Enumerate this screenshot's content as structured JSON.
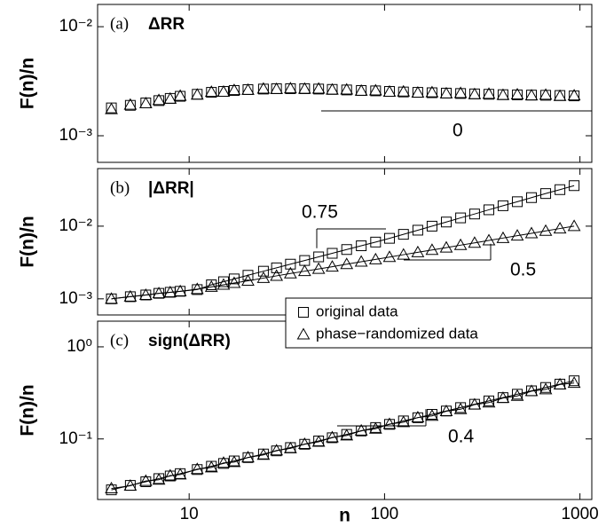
{
  "chart_data": [
    {
      "type": "scatter",
      "label": "(a)",
      "title": "ΔRR",
      "ylabel": "F(n)/n",
      "log": true,
      "lines": false,
      "x": [
        4,
        5,
        6,
        7,
        8,
        9,
        11,
        13,
        15,
        17,
        20,
        24,
        28,
        33,
        39,
        46,
        54,
        64,
        76,
        90,
        106,
        125,
        148,
        175,
        207,
        245,
        289,
        342,
        404,
        478,
        565,
        668,
        790,
        934
      ],
      "series": [
        {
          "marker": "square",
          "color": "#000000",
          "values": [
            0.0018,
            0.0019,
            0.002,
            0.0021,
            0.0022,
            0.0023,
            0.0024,
            0.0025,
            0.00255,
            0.0026,
            0.00265,
            0.00268,
            0.0027,
            0.0027,
            0.0027,
            0.00268,
            0.00266,
            0.00263,
            0.0026,
            0.00258,
            0.00255,
            0.00252,
            0.0025,
            0.00248,
            0.00246,
            0.00244,
            0.00242,
            0.0024,
            0.00238,
            0.00237,
            0.00236,
            0.00235,
            0.00234,
            0.00232
          ]
        },
        {
          "marker": "triangle",
          "color": "#000000",
          "values": [
            0.00175,
            0.00192,
            0.00198,
            0.00212,
            0.00218,
            0.00232,
            0.00238,
            0.00252,
            0.00253,
            0.00262,
            0.00263,
            0.0027,
            0.00268,
            0.00272,
            0.00269,
            0.0027,
            0.00264,
            0.00265,
            0.00258,
            0.0026,
            0.00253,
            0.00254,
            0.00248,
            0.0025,
            0.00244,
            0.00246,
            0.0024,
            0.00242,
            0.00236,
            0.00239,
            0.00234,
            0.00237,
            0.00231,
            0.00234
          ]
        }
      ],
      "xlim": [
        3.4,
        1150
      ],
      "xticks": [
        10,
        100,
        1000
      ],
      "ylim": [
        0.00057,
        0.016
      ],
      "yticks": [
        {
          "value": 0.001,
          "label": "10⁻³"
        },
        {
          "value": 0.01,
          "label": "10⁻²"
        }
      ],
      "annotations": [
        {
          "slope": 0
        }
      ]
    },
    {
      "type": "scatter",
      "label": "(b)",
      "title": "|ΔRR|",
      "ylabel": "F(n)/n",
      "log": true,
      "lines": true,
      "x": [
        4,
        5,
        6,
        7,
        8,
        9,
        11,
        13,
        15,
        17,
        20,
        24,
        28,
        33,
        39,
        46,
        54,
        64,
        76,
        90,
        106,
        125,
        148,
        175,
        207,
        245,
        289,
        342,
        404,
        478,
        565,
        668,
        790,
        934
      ],
      "series": [
        {
          "marker": "square",
          "color": "#000000",
          "values": [
            0.001,
            0.00107,
            0.00113,
            0.00119,
            0.00123,
            0.00127,
            0.00134,
            0.00156,
            0.00172,
            0.00188,
            0.00211,
            0.0024,
            0.00267,
            0.003,
            0.00337,
            0.00378,
            0.00423,
            0.00477,
            0.00537,
            0.00604,
            0.0068,
            0.00772,
            0.0088,
            0.01,
            0.0114,
            0.013,
            0.0147,
            0.0168,
            0.0191,
            0.0217,
            0.0247,
            0.0281,
            0.0318,
            0.0361
          ]
        },
        {
          "marker": "triangle",
          "color": "#000000",
          "values": [
            0.001,
            0.00107,
            0.00113,
            0.00119,
            0.00123,
            0.00127,
            0.00136,
            0.00146,
            0.00156,
            0.00165,
            0.00177,
            0.00193,
            0.00207,
            0.00223,
            0.0024,
            0.00258,
            0.00277,
            0.003,
            0.00324,
            0.00349,
            0.00375,
            0.00405,
            0.00437,
            0.0047,
            0.00507,
            0.00548,
            0.00589,
            0.00636,
            0.00686,
            0.0074,
            0.00797,
            0.0086,
            0.00928,
            0.01
          ]
        }
      ],
      "xlim": [
        3.4,
        1150
      ],
      "xticks": [
        10,
        100,
        1000
      ],
      "ylim": [
        0.0006,
        0.062
      ],
      "yticks": [
        {
          "value": 0.001,
          "label": "10⁻³"
        },
        {
          "value": 0.01,
          "label": "10⁻²"
        }
      ],
      "annotations": [
        {
          "slope": 0.75
        },
        {
          "slope": 0.5
        }
      ]
    },
    {
      "type": "scatter",
      "label": "(c)",
      "title": "sign(ΔRR)",
      "ylabel": "F(n)/n",
      "xlabel": "n",
      "log": true,
      "lines": true,
      "x": [
        4,
        5,
        6,
        7,
        8,
        9,
        11,
        13,
        15,
        17,
        20,
        24,
        28,
        33,
        39,
        46,
        54,
        64,
        76,
        90,
        106,
        125,
        148,
        175,
        207,
        245,
        289,
        342,
        404,
        478,
        565,
        668,
        790,
        934
      ],
      "series": [
        {
          "name": "original data",
          "marker": "square",
          "color": "#000000",
          "values": [
            0.028,
            0.0313,
            0.0343,
            0.0371,
            0.0396,
            0.042,
            0.0465,
            0.0505,
            0.0542,
            0.0577,
            0.0627,
            0.0686,
            0.0742,
            0.0806,
            0.0875,
            0.0951,
            0.103,
            0.112,
            0.122,
            0.133,
            0.144,
            0.157,
            0.17,
            0.185,
            0.201,
            0.219,
            0.238,
            0.259,
            0.281,
            0.306,
            0.333,
            0.362,
            0.394,
            0.428
          ]
        },
        {
          "name": "phase−randomized data",
          "marker": "triangle",
          "color": "#000000",
          "values": [
            0.029,
            0.031,
            0.035,
            0.036,
            0.04,
            0.041,
            0.047,
            0.049,
            0.055,
            0.056,
            0.063,
            0.067,
            0.075,
            0.079,
            0.088,
            0.093,
            0.104,
            0.109,
            0.123,
            0.129,
            0.145,
            0.152,
            0.171,
            0.178,
            0.2,
            0.21,
            0.236,
            0.248,
            0.278,
            0.293,
            0.33,
            0.345,
            0.39,
            0.405
          ]
        }
      ],
      "xlim": [
        3.4,
        1150
      ],
      "xticks": [
        10,
        100,
        1000
      ],
      "ylim": [
        0.022,
        1.9
      ],
      "yticks": [
        {
          "value": 0.1,
          "label": "10⁻¹"
        },
        {
          "value": 1,
          "label": "10⁰"
        }
      ],
      "annotations": [
        {
          "slope": 0.4
        }
      ]
    }
  ]
}
